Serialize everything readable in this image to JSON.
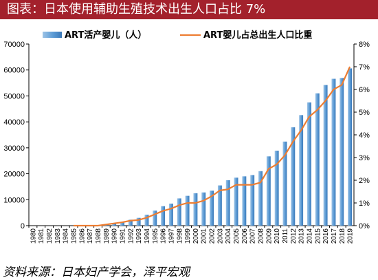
{
  "title": "图表：日本使用辅助生殖技术出生人口占比 7%",
  "source": "资料来源：日本妇产学会，泽平宏观",
  "colors": {
    "title_bg": "#a3212c",
    "bar": "#5b9bd5",
    "line": "#ed7d31"
  },
  "chart_data": {
    "type": "bar",
    "categories": [
      "1980",
      "1981",
      "1982",
      "1983",
      "1984",
      "1985",
      "1986",
      "1987",
      "1988",
      "1989",
      "1990",
      "1991",
      "1992",
      "1993",
      "1994",
      "1995",
      "1996",
      "1997",
      "1998",
      "1999",
      "2000",
      "2001",
      "2002",
      "2003",
      "2004",
      "2005",
      "2006",
      "2007",
      "2008",
      "2009",
      "2010",
      "2011",
      "2012",
      "2013",
      "2014",
      "2015",
      "2016",
      "2017",
      "2018",
      "2019"
    ],
    "series": [
      {
        "name": "ART活产婴儿（人）",
        "type": "bar",
        "axis": "left",
        "values": [
          0,
          0,
          0,
          0,
          0,
          0,
          0,
          0,
          100,
          400,
          1000,
          1300,
          2300,
          3000,
          4200,
          5800,
          7500,
          8500,
          10500,
          11500,
          12500,
          12800,
          13500,
          15500,
          17500,
          18500,
          19000,
          19500,
          21000,
          26700,
          28900,
          32400,
          37900,
          42600,
          47500,
          51000,
          54200,
          56600,
          56900,
          60600
        ]
      },
      {
        "name": "ART婴儿占总出生人口比重",
        "type": "line",
        "axis": "right",
        "values": [
          0,
          0,
          0,
          0,
          0,
          0,
          0,
          0,
          0,
          0.05,
          0.1,
          0.15,
          0.22,
          0.25,
          0.35,
          0.5,
          0.65,
          0.75,
          0.9,
          1.0,
          1.0,
          1.1,
          1.3,
          1.55,
          1.6,
          1.8,
          1.8,
          1.8,
          1.9,
          2.5,
          2.7,
          3.1,
          3.7,
          4.2,
          4.8,
          5.1,
          5.5,
          6.0,
          6.2,
          7.0
        ]
      }
    ],
    "ylim": [
      0,
      70000
    ],
    "yticks": [
      "0",
      "10000",
      "20000",
      "30000",
      "40000",
      "50000",
      "60000",
      "70000"
    ],
    "y2lim": [
      0,
      8
    ],
    "y2ticks": [
      "0%",
      "1%",
      "2%",
      "3%",
      "4%",
      "5%",
      "6%",
      "7%",
      "8%"
    ],
    "legend_position": "top",
    "grid": false
  }
}
